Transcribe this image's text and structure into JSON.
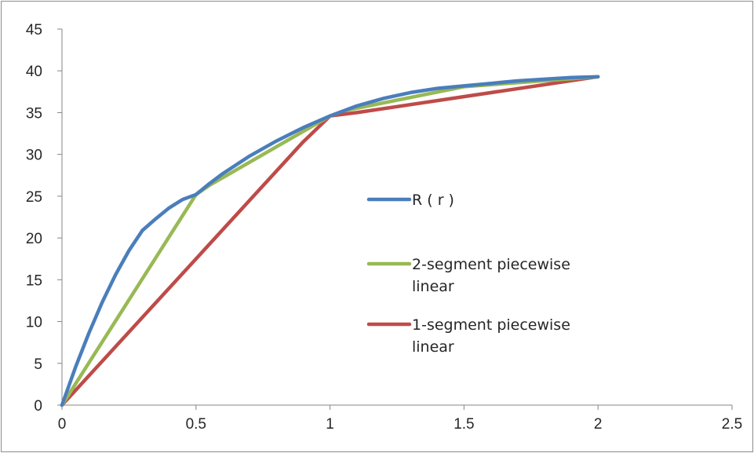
{
  "chart_data": {
    "type": "line",
    "title": "",
    "xlabel": "",
    "ylabel": "",
    "xlim": [
      0,
      2.5
    ],
    "ylim": [
      0,
      45
    ],
    "x_ticks": [
      "0",
      "0.5",
      "1",
      "1.5",
      "2",
      "2.5"
    ],
    "y_ticks": [
      "0",
      "5",
      "10",
      "15",
      "20",
      "25",
      "30",
      "35",
      "40",
      "45"
    ],
    "grid": false,
    "legend_position": "right-center",
    "series": [
      {
        "name": "R ( r )",
        "color": "#4a7ebb",
        "points": [
          [
            0,
            0
          ],
          [
            0.05,
            4.5
          ],
          [
            0.1,
            8.6
          ],
          [
            0.15,
            12.3
          ],
          [
            0.2,
            15.6
          ],
          [
            0.25,
            18.5
          ],
          [
            0.3,
            20.9
          ],
          [
            0.35,
            22.3
          ],
          [
            0.4,
            23.6
          ],
          [
            0.45,
            24.6
          ],
          [
            0.5,
            25.2
          ],
          [
            0.55,
            26.5
          ],
          [
            0.6,
            27.7
          ],
          [
            0.7,
            29.8
          ],
          [
            0.8,
            31.6
          ],
          [
            0.9,
            33.2
          ],
          [
            1.0,
            34.6
          ],
          [
            1.1,
            35.8
          ],
          [
            1.2,
            36.7
          ],
          [
            1.3,
            37.4
          ],
          [
            1.4,
            37.9
          ],
          [
            1.5,
            38.2
          ],
          [
            1.6,
            38.5
          ],
          [
            1.7,
            38.8
          ],
          [
            1.8,
            39.0
          ],
          [
            1.9,
            39.2
          ],
          [
            2.0,
            39.3
          ]
        ]
      },
      {
        "name": "2-segment piecewise linear",
        "color": "#98b954",
        "points": [
          [
            0,
            0
          ],
          [
            0.5,
            25.2
          ],
          [
            0.55,
            26.3
          ],
          [
            1.0,
            34.6
          ],
          [
            1.05,
            35.2
          ],
          [
            1.5,
            38.1
          ],
          [
            2.0,
            39.3
          ]
        ]
      },
      {
        "name": "1-segment piecewise linear",
        "color": "#be4b48",
        "points": [
          [
            0,
            0
          ],
          [
            0.9,
            31.5
          ],
          [
            1.0,
            34.6
          ],
          [
            1.1,
            35.0
          ],
          [
            2.0,
            39.3
          ]
        ]
      }
    ],
    "legend_labels": [
      [
        "R ( r )"
      ],
      [
        "2-segment piecewise",
        "linear"
      ],
      [
        "1-segment piecewise",
        "linear"
      ]
    ]
  }
}
